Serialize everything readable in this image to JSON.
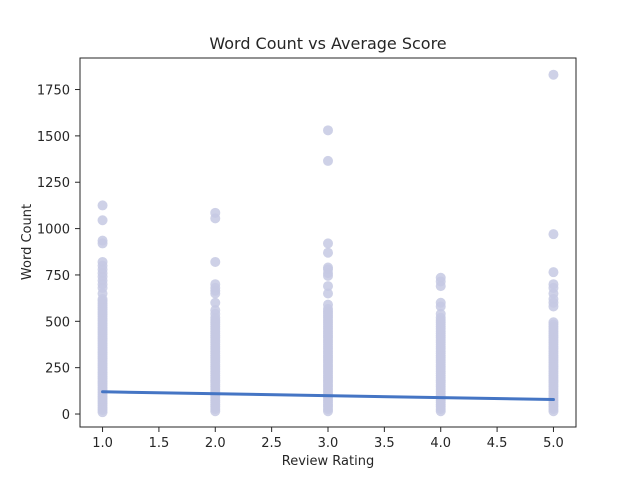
{
  "chart_data": {
    "type": "scatter",
    "title": "Word Count vs Average Score",
    "xlabel": "Review Rating",
    "ylabel": "Word Count",
    "xlim": [
      0.8,
      5.2
    ],
    "ylim": [
      -70,
      1920
    ],
    "xticks": [
      1.0,
      1.5,
      2.0,
      2.5,
      3.0,
      3.5,
      4.0,
      4.5,
      5.0
    ],
    "xtick_labels": [
      "1.0",
      "1.5",
      "2.0",
      "2.5",
      "3.0",
      "3.5",
      "4.0",
      "4.5",
      "5.0"
    ],
    "yticks": [
      0,
      250,
      500,
      750,
      1000,
      1250,
      1500,
      1750
    ],
    "ytick_labels": [
      "0",
      "250",
      "500",
      "750",
      "1000",
      "1250",
      "1500",
      "1750"
    ],
    "grid": false,
    "point_color": "#c5c9e3",
    "regression_color": "#4575c4",
    "series": [
      {
        "type": "scatter",
        "points": [
          {
            "x": 1,
            "y": 1125
          },
          {
            "x": 1,
            "y": 1045
          },
          {
            "x": 1,
            "y": 935
          },
          {
            "x": 1,
            "y": 920
          },
          {
            "x": 1,
            "y": 820
          },
          {
            "x": 1,
            "y": 800
          },
          {
            "x": 1,
            "y": 780
          },
          {
            "x": 1,
            "y": 760
          },
          {
            "x": 1,
            "y": 740
          },
          {
            "x": 1,
            "y": 720
          },
          {
            "x": 1,
            "y": 700
          },
          {
            "x": 1,
            "y": 680
          },
          {
            "x": 1,
            "y": 650
          },
          {
            "x": 1,
            "y": 620
          },
          {
            "x": 2,
            "y": 1085
          },
          {
            "x": 2,
            "y": 1055
          },
          {
            "x": 2,
            "y": 820
          },
          {
            "x": 2,
            "y": 700
          },
          {
            "x": 2,
            "y": 680
          },
          {
            "x": 2,
            "y": 665
          },
          {
            "x": 2,
            "y": 650
          },
          {
            "x": 2,
            "y": 600
          },
          {
            "x": 2,
            "y": 560
          },
          {
            "x": 2,
            "y": 540
          },
          {
            "x": 3,
            "y": 1530
          },
          {
            "x": 3,
            "y": 1365
          },
          {
            "x": 3,
            "y": 920
          },
          {
            "x": 3,
            "y": 870
          },
          {
            "x": 3,
            "y": 790
          },
          {
            "x": 3,
            "y": 780
          },
          {
            "x": 3,
            "y": 760
          },
          {
            "x": 3,
            "y": 745
          },
          {
            "x": 3,
            "y": 690
          },
          {
            "x": 3,
            "y": 650
          },
          {
            "x": 3,
            "y": 590
          },
          {
            "x": 4,
            "y": 735
          },
          {
            "x": 4,
            "y": 715
          },
          {
            "x": 4,
            "y": 690
          },
          {
            "x": 4,
            "y": 600
          },
          {
            "x": 4,
            "y": 580
          },
          {
            "x": 4,
            "y": 540
          },
          {
            "x": 5,
            "y": 1830
          },
          {
            "x": 5,
            "y": 970
          },
          {
            "x": 5,
            "y": 765
          },
          {
            "x": 5,
            "y": 700
          },
          {
            "x": 5,
            "y": 680
          },
          {
            "x": 5,
            "y": 650
          },
          {
            "x": 5,
            "y": 620
          },
          {
            "x": 5,
            "y": 600
          },
          {
            "x": 5,
            "y": 580
          }
        ],
        "dense_ranges": [
          {
            "x": 1,
            "y_from": 10,
            "y_to": 610
          },
          {
            "x": 2,
            "y_from": 15,
            "y_to": 520
          },
          {
            "x": 3,
            "y_from": 15,
            "y_to": 570
          },
          {
            "x": 4,
            "y_from": 15,
            "y_to": 520
          },
          {
            "x": 5,
            "y_from": 15,
            "y_to": 500
          }
        ]
      },
      {
        "type": "line",
        "points": [
          {
            "x": 1,
            "y": 120
          },
          {
            "x": 5,
            "y": 78
          }
        ]
      }
    ]
  }
}
